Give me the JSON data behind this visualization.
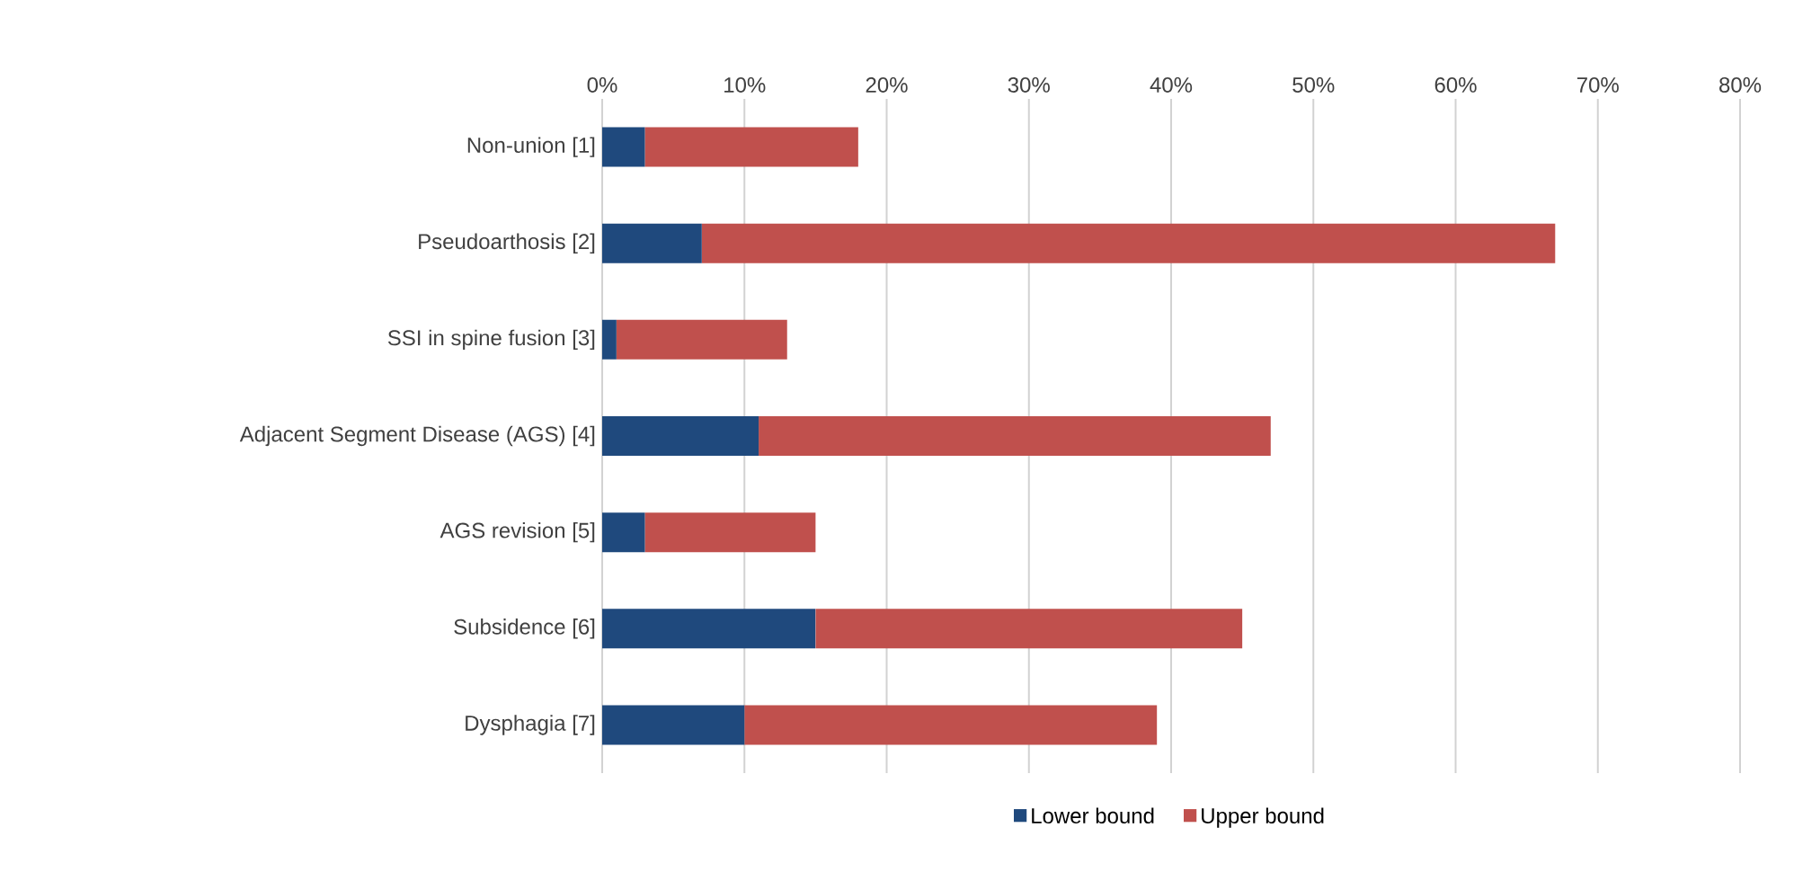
{
  "chart_data": {
    "type": "bar",
    "orientation": "horizontal",
    "stacked": true,
    "categories": [
      "Non-union [1]",
      "Pseudoarthosis [2]",
      "SSI in spine fusion [3]",
      "Adjacent Segment Disease (AGS) [4]",
      "AGS revision  [5]",
      "Subsidence [6]",
      "Dysphagia [7]"
    ],
    "series": [
      {
        "name": "Lower bound",
        "color": "#1f497d",
        "values": [
          3,
          7,
          1,
          11,
          3,
          15,
          10
        ]
      },
      {
        "name": "Upper bound",
        "color": "#c0504d",
        "values": [
          15,
          60,
          12,
          36,
          12,
          30,
          29
        ]
      }
    ],
    "xlim": [
      0,
      80
    ],
    "xticks": [
      {
        "value": 0,
        "label": "0%"
      },
      {
        "value": 10,
        "label": "10%"
      },
      {
        "value": 20,
        "label": "20%"
      },
      {
        "value": 30,
        "label": "30%"
      },
      {
        "value": 40,
        "label": "40%"
      },
      {
        "value": 50,
        "label": "50%"
      },
      {
        "value": 60,
        "label": "60%"
      },
      {
        "value": 70,
        "label": "70%"
      },
      {
        "value": 80,
        "label": "80%"
      }
    ],
    "grid": "x",
    "legend": "bottom"
  }
}
